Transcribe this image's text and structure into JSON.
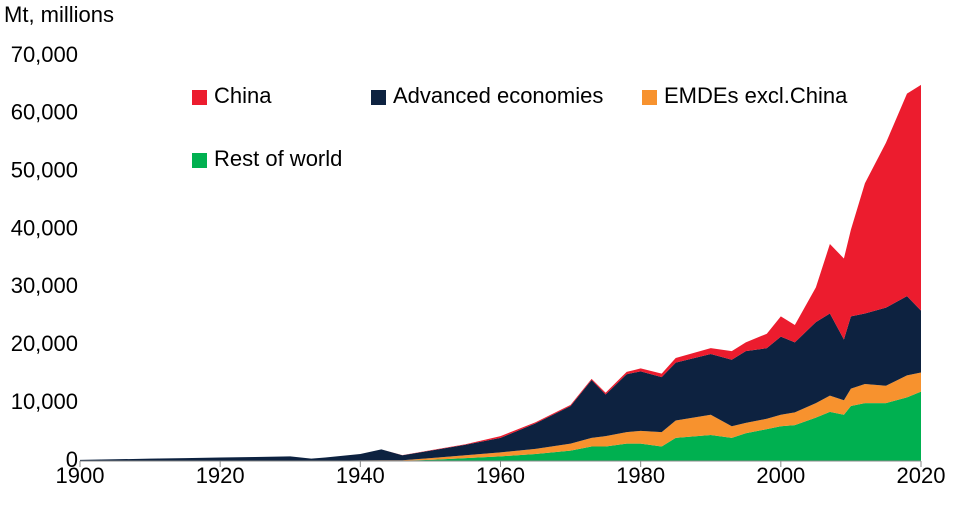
{
  "chart_data": {
    "type": "stacked_area",
    "y_label": "Mt, millions",
    "x": [
      1900,
      1905,
      1910,
      1915,
      1920,
      1925,
      1930,
      1933,
      1935,
      1940,
      1943,
      1946,
      1950,
      1955,
      1960,
      1965,
      1970,
      1973,
      1975,
      1978,
      1980,
      1983,
      1985,
      1990,
      1993,
      1995,
      1998,
      2000,
      2002,
      2005,
      2007,
      2009,
      2010,
      2012,
      2015,
      2018,
      2020
    ],
    "series": [
      {
        "name": "Rest of world",
        "color": "#00b050",
        "values": [
          0,
          0,
          0,
          0,
          10,
          10,
          20,
          10,
          20,
          40,
          60,
          60,
          200,
          500,
          800,
          1200,
          1800,
          2500,
          2500,
          3000,
          3000,
          2500,
          4000,
          4500,
          4000,
          4800,
          5500,
          6000,
          6200,
          7500,
          8500,
          8000,
          9500,
          10000,
          10000,
          11000,
          12000
        ]
      },
      {
        "name": "EMDEs excl.China",
        "color": "#f7922e",
        "values": [
          0,
          0,
          10,
          10,
          20,
          20,
          30,
          20,
          30,
          60,
          80,
          80,
          300,
          500,
          700,
          900,
          1200,
          1500,
          1800,
          2000,
          2200,
          2500,
          3000,
          3500,
          2000,
          1800,
          1800,
          2000,
          2200,
          2500,
          2800,
          2500,
          3000,
          3300,
          3000,
          3800,
          3300
        ]
      },
      {
        "name": "Advanced economies",
        "color": "#0d2240",
        "values": [
          200,
          300,
          390,
          490,
          570,
          670,
          750,
          370,
          550,
          1100,
          1860,
          860,
          1300,
          1800,
          2500,
          4400,
          6500,
          10000,
          7200,
          10000,
          10300,
          9500,
          10000,
          10500,
          11500,
          12400,
          12200,
          13500,
          12100,
          14000,
          14200,
          10500,
          12500,
          12200,
          13500,
          13700,
          10700
        ]
      },
      {
        "name": "China",
        "color": "#ec1c2e",
        "values": [
          0,
          0,
          0,
          0,
          0,
          0,
          0,
          0,
          0,
          10,
          20,
          10,
          50,
          100,
          300,
          200,
          200,
          200,
          300,
          400,
          500,
          600,
          800,
          1000,
          1500,
          1500,
          2500,
          3500,
          3000,
          6000,
          12000,
          14000,
          15000,
          22500,
          28500,
          35000,
          39000
        ]
      }
    ],
    "xlim": [
      1900,
      2020
    ],
    "xticks": [
      1900,
      1920,
      1940,
      1960,
      1980,
      2000,
      2020
    ],
    "ylim": [
      0,
      70000
    ],
    "yticks": [
      0,
      {
        "value": 10000,
        "label": "10,000"
      },
      {
        "value": 20000,
        "label": "20,000"
      },
      {
        "value": 30000,
        "label": "30,000"
      },
      {
        "value": 40000,
        "label": "40,000"
      },
      {
        "value": 50000,
        "label": "50,000"
      },
      {
        "value": 60000,
        "label": "60,000"
      },
      {
        "value": 70000,
        "label": "70,000"
      }
    ],
    "grid": false
  }
}
